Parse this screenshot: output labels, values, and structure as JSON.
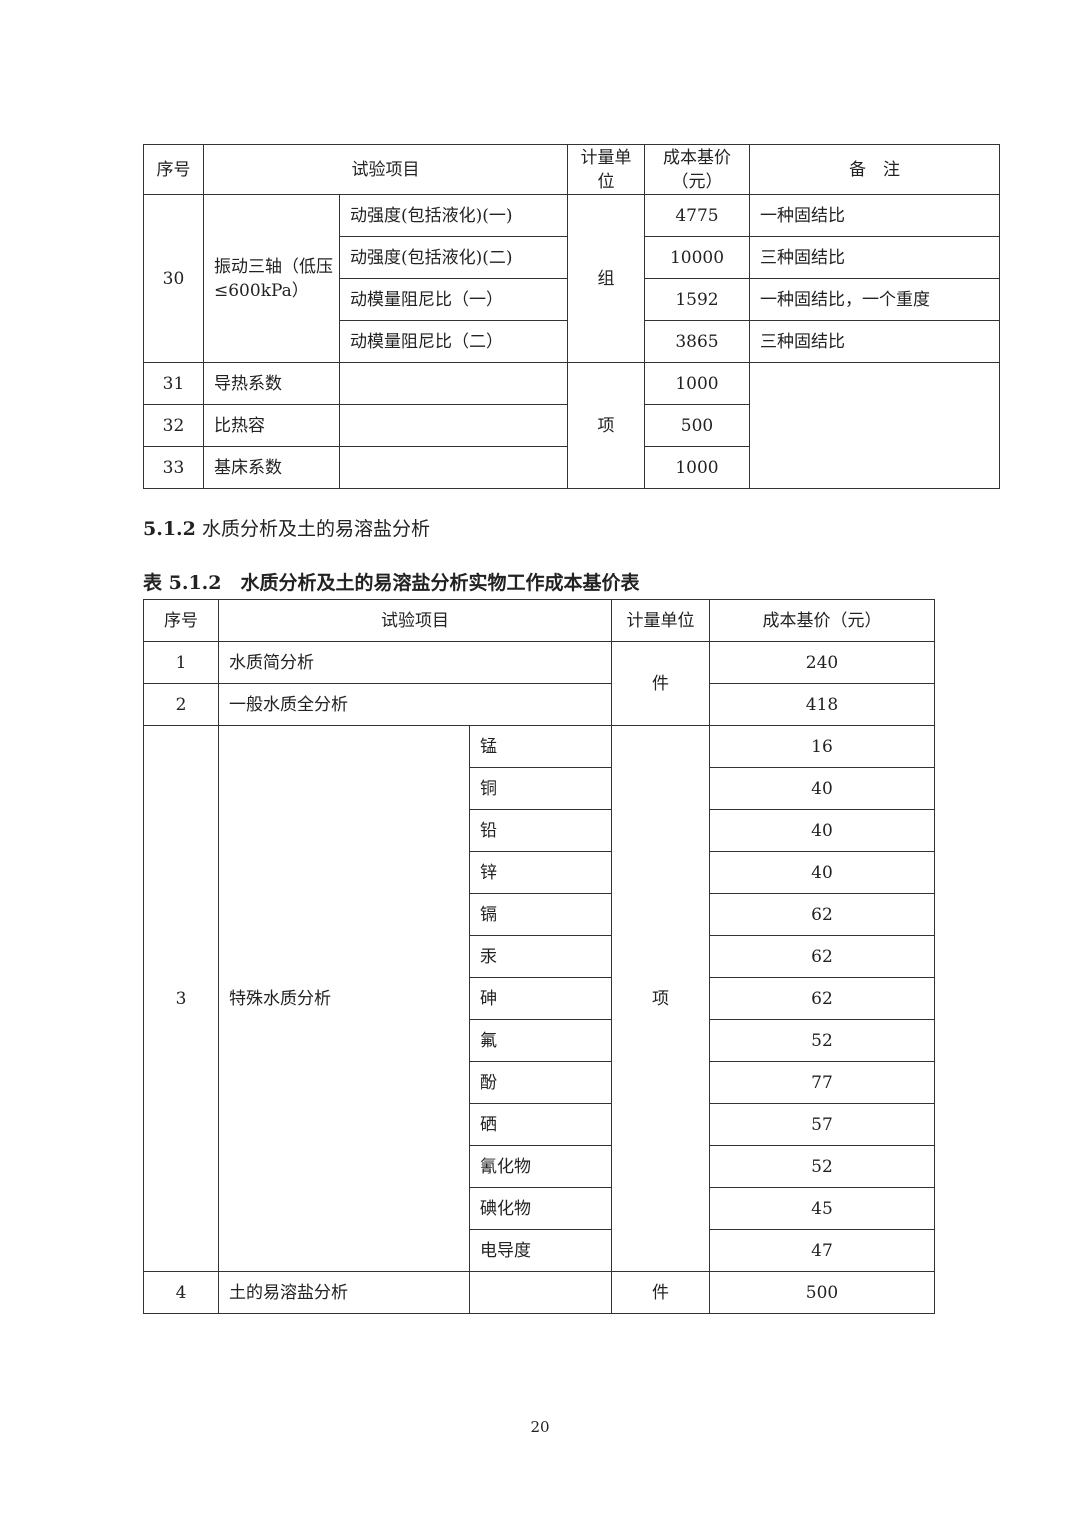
{
  "table1": {
    "headers": {
      "no": "序号",
      "item": "试验项目",
      "unit": "计量单位",
      "price": "成本基价（元）",
      "note": "备　注"
    },
    "r30": {
      "no": "30",
      "item": "振动三轴（低压≤600kPa）",
      "unit": "组",
      "subs": [
        {
          "name": "动强度(包括液化)(一)",
          "price": "4775",
          "note": "一种固结比"
        },
        {
          "name": "动强度(包括液化)(二)",
          "price": "10000",
          "note": "三种固结比"
        },
        {
          "name": "动模量阻尼比（一）",
          "price": "1592",
          "note": "一种固结比，一个重度"
        },
        {
          "name": "动模量阻尼比（二）",
          "price": "3865",
          "note": "三种固结比"
        }
      ]
    },
    "unit_b": "项",
    "rows": [
      {
        "no": "31",
        "item": "导热系数",
        "price": "1000"
      },
      {
        "no": "32",
        "item": "比热容",
        "price": "500"
      },
      {
        "no": "33",
        "item": "基床系数",
        "price": "1000"
      }
    ]
  },
  "section_heading": {
    "num": "5.1.2",
    "text": "水质分析及土的易溶盐分析"
  },
  "table_title": "表 5.1.2　水质分析及土的易溶盐分析实物工作成本基价表",
  "table2": {
    "headers": {
      "no": "序号",
      "item": "试验项目",
      "unit": "计量单位",
      "price": "成本基价（元）"
    },
    "r1": {
      "no": "1",
      "item": "水质简分析",
      "price": "240"
    },
    "r2": {
      "no": "2",
      "item": "一般水质全分析",
      "price": "418"
    },
    "unit_a": "件",
    "r3": {
      "no": "3",
      "item": "特殊水质分析",
      "unit": "项",
      "subs": [
        {
          "name": "锰",
          "price": "16"
        },
        {
          "name": "铜",
          "price": "40"
        },
        {
          "name": "铅",
          "price": "40"
        },
        {
          "name": "锌",
          "price": "40"
        },
        {
          "name": "镉",
          "price": "62"
        },
        {
          "name": "汞",
          "price": "62"
        },
        {
          "name": "砷",
          "price": "62"
        },
        {
          "name": "氟",
          "price": "52"
        },
        {
          "name": "酚",
          "price": "77"
        },
        {
          "name": "硒",
          "price": "57"
        },
        {
          "name": "氰化物",
          "price": "52"
        },
        {
          "name": "碘化物",
          "price": "45"
        },
        {
          "name": "电导度",
          "price": "47"
        }
      ]
    },
    "r4": {
      "no": "4",
      "item": "土的易溶盐分析",
      "unit": "件",
      "price": "500"
    }
  },
  "page_number": "20"
}
